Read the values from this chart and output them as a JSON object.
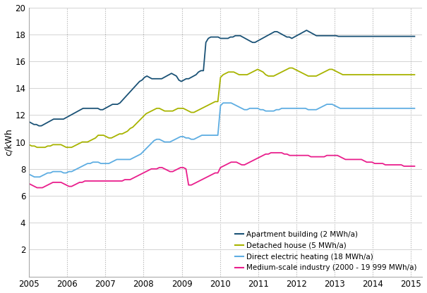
{
  "ylabel": "c/kWh",
  "ylim": [
    0,
    20
  ],
  "xlim": [
    2005.0,
    2015.3
  ],
  "yticks": [
    0,
    2,
    4,
    6,
    8,
    10,
    12,
    14,
    16,
    18,
    20
  ],
  "xticks": [
    2005,
    2006,
    2007,
    2008,
    2009,
    2010,
    2011,
    2012,
    2013,
    2014,
    2015
  ],
  "colors": {
    "apartment": "#1a5276",
    "detached": "#a8b400",
    "direct": "#5dade2",
    "industry": "#e91e8c"
  },
  "legend_labels": [
    "Apartment building (2 MWh/a)",
    "Detached house (5 MWh/a)",
    "Direct electric heating (18 MWh/a)",
    "Medium-scale industry (2000 - 19 999 MWh/a)"
  ],
  "background_color": "#ffffff",
  "grid_color": "#cccccc",
  "apartment": [
    11.5,
    11.4,
    11.3,
    11.3,
    11.2,
    11.2,
    11.3,
    11.4,
    11.5,
    11.6,
    11.7,
    11.7,
    11.7,
    11.7,
    11.7,
    11.8,
    11.9,
    12.0,
    12.1,
    12.2,
    12.3,
    12.4,
    12.5,
    12.5,
    12.5,
    12.5,
    12.5,
    12.5,
    12.5,
    12.4,
    12.4,
    12.5,
    12.6,
    12.7,
    12.8,
    12.8,
    12.8,
    12.9,
    13.1,
    13.3,
    13.5,
    13.7,
    13.9,
    14.1,
    14.3,
    14.5,
    14.6,
    14.8,
    14.9,
    14.8,
    14.7,
    14.7,
    14.7,
    14.7,
    14.7,
    14.8,
    14.9,
    15.0,
    15.1,
    15.0,
    14.9,
    14.6,
    14.5,
    14.6,
    14.7,
    14.7,
    14.8,
    14.9,
    15.0,
    15.2,
    15.3,
    15.3,
    17.4,
    17.7,
    17.8,
    17.8,
    17.8,
    17.8,
    17.7,
    17.7,
    17.7,
    17.7,
    17.8,
    17.8,
    17.9,
    17.9,
    17.9,
    17.8,
    17.7,
    17.6,
    17.5,
    17.4,
    17.4,
    17.5,
    17.6,
    17.7,
    17.8,
    17.9,
    18.0,
    18.1,
    18.2,
    18.2,
    18.1,
    18.0,
    17.9,
    17.8,
    17.8,
    17.7,
    17.8,
    17.9,
    18.0,
    18.1,
    18.2,
    18.3,
    18.2,
    18.1,
    18.0,
    17.9,
    17.9,
    17.9,
    17.9,
    17.9,
    17.9,
    17.9,
    17.9,
    17.9,
    17.85,
    17.85,
    17.85,
    17.85,
    17.85,
    17.85,
    17.85,
    17.85,
    17.85,
    17.85,
    17.85,
    17.85,
    17.85,
    17.85,
    17.85,
    17.85,
    17.85,
    17.85,
    17.85,
    17.85,
    17.85,
    17.85,
    17.85,
    17.85,
    17.85,
    17.85,
    17.85,
    17.85,
    17.85,
    17.85,
    17.85,
    17.85
  ],
  "detached": [
    9.8,
    9.7,
    9.7,
    9.6,
    9.6,
    9.6,
    9.6,
    9.7,
    9.7,
    9.8,
    9.8,
    9.8,
    9.8,
    9.7,
    9.6,
    9.6,
    9.6,
    9.7,
    9.8,
    9.9,
    10.0,
    10.0,
    10.0,
    10.1,
    10.2,
    10.3,
    10.5,
    10.5,
    10.5,
    10.4,
    10.3,
    10.3,
    10.4,
    10.5,
    10.6,
    10.6,
    10.7,
    10.8,
    11.0,
    11.1,
    11.3,
    11.5,
    11.7,
    11.9,
    12.1,
    12.2,
    12.3,
    12.4,
    12.5,
    12.5,
    12.4,
    12.3,
    12.3,
    12.3,
    12.3,
    12.4,
    12.5,
    12.5,
    12.5,
    12.4,
    12.3,
    12.2,
    12.2,
    12.3,
    12.4,
    12.5,
    12.6,
    12.7,
    12.8,
    12.9,
    13.0,
    13.0,
    14.8,
    15.0,
    15.1,
    15.2,
    15.2,
    15.2,
    15.1,
    15.0,
    15.0,
    15.0,
    15.0,
    15.1,
    15.2,
    15.3,
    15.4,
    15.3,
    15.2,
    15.0,
    14.9,
    14.9,
    14.9,
    15.0,
    15.1,
    15.2,
    15.3,
    15.4,
    15.5,
    15.5,
    15.4,
    15.3,
    15.2,
    15.1,
    15.0,
    14.9,
    14.9,
    14.9,
    14.9,
    15.0,
    15.1,
    15.2,
    15.3,
    15.4,
    15.4,
    15.3,
    15.2,
    15.1,
    15.0,
    15.0,
    15.0,
    15.0,
    15.0,
    15.0,
    15.0,
    15.0,
    15.0,
    15.0,
    15.0,
    15.0,
    15.0,
    15.0,
    15.0,
    15.0,
    15.0,
    15.0,
    15.0,
    15.0,
    15.0,
    15.0,
    15.0,
    15.0,
    15.0,
    15.0,
    15.0,
    15.0
  ],
  "direct": [
    7.6,
    7.5,
    7.4,
    7.4,
    7.4,
    7.5,
    7.6,
    7.7,
    7.7,
    7.8,
    7.8,
    7.8,
    7.8,
    7.7,
    7.7,
    7.8,
    7.8,
    7.9,
    8.0,
    8.1,
    8.2,
    8.3,
    8.4,
    8.4,
    8.5,
    8.5,
    8.5,
    8.4,
    8.4,
    8.4,
    8.4,
    8.5,
    8.6,
    8.7,
    8.7,
    8.7,
    8.7,
    8.7,
    8.7,
    8.8,
    8.9,
    9.0,
    9.1,
    9.3,
    9.5,
    9.7,
    9.9,
    10.1,
    10.2,
    10.2,
    10.1,
    10.0,
    10.0,
    10.0,
    10.1,
    10.2,
    10.3,
    10.4,
    10.4,
    10.3,
    10.3,
    10.2,
    10.2,
    10.3,
    10.4,
    10.5,
    10.5,
    10.5,
    10.5,
    10.5,
    10.5,
    10.5,
    12.7,
    12.9,
    12.9,
    12.9,
    12.9,
    12.8,
    12.7,
    12.6,
    12.5,
    12.4,
    12.4,
    12.5,
    12.5,
    12.5,
    12.5,
    12.4,
    12.4,
    12.3,
    12.3,
    12.3,
    12.3,
    12.4,
    12.4,
    12.5,
    12.5,
    12.5,
    12.5,
    12.5,
    12.5,
    12.5,
    12.5,
    12.5,
    12.5,
    12.4,
    12.4,
    12.4,
    12.4,
    12.5,
    12.6,
    12.7,
    12.8,
    12.8,
    12.8,
    12.7,
    12.6,
    12.5,
    12.5,
    12.5,
    12.5,
    12.5,
    12.5,
    12.5,
    12.5,
    12.5,
    12.5,
    12.5,
    12.5,
    12.5,
    12.5,
    12.5,
    12.5,
    12.5,
    12.5,
    12.5,
    12.5,
    12.5,
    12.5,
    12.5,
    12.5,
    12.5,
    12.5,
    12.5,
    12.5,
    12.5
  ],
  "industry": [
    6.9,
    6.8,
    6.7,
    6.6,
    6.6,
    6.6,
    6.7,
    6.8,
    6.9,
    7.0,
    7.0,
    7.0,
    7.0,
    6.9,
    6.8,
    6.7,
    6.7,
    6.8,
    6.9,
    7.0,
    7.0,
    7.1,
    7.1,
    7.1,
    7.1,
    7.1,
    7.1,
    7.1,
    7.1,
    7.1,
    7.1,
    7.1,
    7.1,
    7.1,
    7.1,
    7.1,
    7.2,
    7.2,
    7.2,
    7.3,
    7.4,
    7.5,
    7.6,
    7.7,
    7.8,
    7.9,
    8.0,
    8.0,
    8.0,
    8.1,
    8.1,
    8.0,
    7.9,
    7.8,
    7.8,
    7.9,
    8.0,
    8.1,
    8.1,
    8.0,
    6.8,
    6.8,
    6.9,
    7.0,
    7.1,
    7.2,
    7.3,
    7.4,
    7.5,
    7.6,
    7.7,
    7.7,
    8.1,
    8.2,
    8.3,
    8.4,
    8.5,
    8.5,
    8.5,
    8.4,
    8.3,
    8.3,
    8.4,
    8.5,
    8.6,
    8.7,
    8.8,
    8.9,
    9.0,
    9.1,
    9.1,
    9.2,
    9.2,
    9.2,
    9.2,
    9.2,
    9.1,
    9.1,
    9.0,
    9.0,
    9.0,
    9.0,
    9.0,
    9.0,
    9.0,
    9.0,
    8.9,
    8.9,
    8.9,
    8.9,
    8.9,
    8.9,
    9.0,
    9.0,
    9.0,
    9.0,
    9.0,
    8.9,
    8.8,
    8.7,
    8.7,
    8.7,
    8.7,
    8.7,
    8.7,
    8.7,
    8.6,
    8.5,
    8.5,
    8.5,
    8.4,
    8.4,
    8.4,
    8.4,
    8.3,
    8.3,
    8.3,
    8.3,
    8.3,
    8.3,
    8.3,
    8.2,
    8.2,
    8.2,
    8.2,
    8.2
  ]
}
